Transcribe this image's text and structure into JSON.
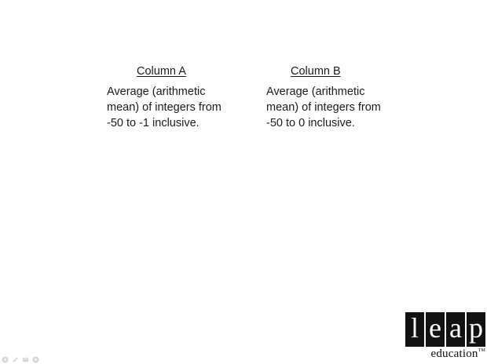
{
  "column_a": {
    "heading": "Column A",
    "lines": [
      "Average (arithmetic",
      "mean) of integers from",
      "-50 to -1 inclusive."
    ]
  },
  "column_b": {
    "heading": "Column B",
    "lines": [
      "Average (arithmetic",
      "mean) of integers from",
      "-50 to 0 inclusive."
    ]
  },
  "logo": {
    "letters": [
      "l",
      "e",
      "a",
      "p"
    ],
    "word": "education",
    "trademark": "TM"
  },
  "toolbar": {
    "icons": [
      "back-arrow-icon",
      "pen-icon",
      "slides-icon",
      "forward-arrow-icon"
    ]
  },
  "colors": {
    "background": "#ffffff",
    "text": "#1a1a1a",
    "logo_tile": "#111111"
  }
}
